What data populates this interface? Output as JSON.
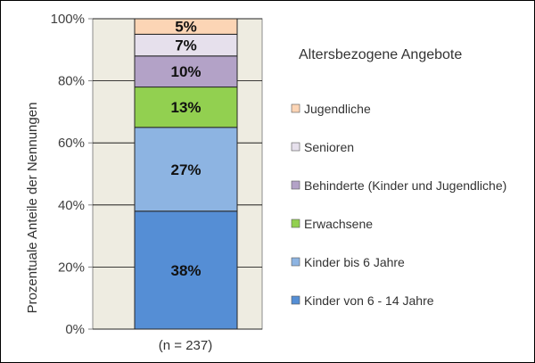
{
  "chart_data": {
    "type": "bar",
    "stacked": true,
    "percent": true,
    "categories": [
      "(n = 237)"
    ],
    "ylabel": "Prozentuale Anteile der Nennungen",
    "ylim": [
      0,
      100
    ],
    "yticks": [
      "0%",
      "20%",
      "40%",
      "60%",
      "80%",
      "100%"
    ],
    "grid": true,
    "legend_title": "Altersbezogene Angebote",
    "legend_position": "right",
    "series": [
      {
        "name": "Kinder von 6 - 14 Jahre",
        "values": [
          38
        ],
        "label": "38%",
        "color": "#558ed5"
      },
      {
        "name": "Kinder bis 6 Jahre",
        "values": [
          27
        ],
        "label": "27%",
        "color": "#8db4e2"
      },
      {
        "name": "Erwachsene",
        "values": [
          13
        ],
        "label": "13%",
        "color": "#92d050"
      },
      {
        "name": "Behinderte (Kinder und Jugendliche)",
        "values": [
          10
        ],
        "label": "10%",
        "color": "#b3a2c7"
      },
      {
        "name": "Senioren",
        "values": [
          7
        ],
        "label": "7%",
        "color": "#e6e0ec"
      },
      {
        "name": "Jugendliche",
        "values": [
          5
        ],
        "label": "5%",
        "color": "#fcd5b5"
      }
    ],
    "plot_background": "#eeece1"
  }
}
